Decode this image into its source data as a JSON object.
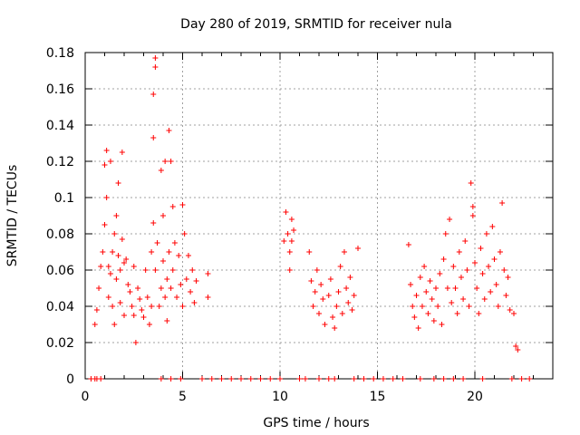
{
  "chart_data": {
    "type": "scatter",
    "title": "Day 280 of 2019, SRMTID for receiver nula",
    "xlabel": "GPS time / hours",
    "ylabel": "SRMTID / TECUs",
    "xlim": [
      0,
      24
    ],
    "ylim": [
      0,
      0.18
    ],
    "x_ticks": [
      0,
      5,
      10,
      15,
      20
    ],
    "x_tick_labels": [
      "0",
      "5",
      "10",
      "15",
      "20"
    ],
    "y_ticks": [
      0,
      0.02,
      0.04,
      0.06,
      0.08,
      0.1,
      0.12,
      0.14,
      0.16,
      0.18
    ],
    "y_tick_labels": [
      "0",
      "0.02",
      "0.04",
      "0.06",
      "0.08",
      "0.1",
      "0.12",
      "0.14",
      "0.16",
      "0.18"
    ],
    "grid": true,
    "marker": "+",
    "marker_color": "#ff0000",
    "series": [
      {
        "name": "SRMTID",
        "points": [
          [
            0.3,
            0.0
          ],
          [
            0.5,
            0.0
          ],
          [
            0.6,
            0.0
          ],
          [
            0.8,
            0.0
          ],
          [
            3.9,
            0.0
          ],
          [
            4.4,
            0.0
          ],
          [
            4.9,
            0.0
          ],
          [
            6.0,
            0.0
          ],
          [
            6.5,
            0.0
          ],
          [
            7.0,
            0.0
          ],
          [
            7.5,
            0.0
          ],
          [
            8.0,
            0.0
          ],
          [
            8.5,
            0.0
          ],
          [
            9.0,
            0.0
          ],
          [
            9.5,
            0.0
          ],
          [
            10.0,
            0.0
          ],
          [
            11.0,
            0.0
          ],
          [
            11.3,
            0.0
          ],
          [
            12.0,
            0.0
          ],
          [
            12.5,
            0.0
          ],
          [
            12.8,
            0.0
          ],
          [
            13.8,
            0.0
          ],
          [
            14.3,
            0.0
          ],
          [
            14.8,
            0.0
          ],
          [
            15.3,
            0.0
          ],
          [
            15.8,
            0.0
          ],
          [
            16.3,
            0.0
          ],
          [
            17.2,
            0.0
          ],
          [
            17.9,
            0.0
          ],
          [
            18.4,
            0.0
          ],
          [
            18.9,
            0.0
          ],
          [
            19.4,
            0.0
          ],
          [
            20.4,
            0.0
          ],
          [
            21.9,
            0.0
          ],
          [
            22.4,
            0.0
          ],
          [
            22.8,
            0.0
          ],
          [
            0.5,
            0.03
          ],
          [
            0.6,
            0.038
          ],
          [
            0.7,
            0.05
          ],
          [
            0.8,
            0.062
          ],
          [
            0.9,
            0.07
          ],
          [
            1.0,
            0.085
          ],
          [
            1.0,
            0.118
          ],
          [
            1.1,
            0.1
          ],
          [
            1.1,
            0.126
          ],
          [
            1.2,
            0.062
          ],
          [
            1.2,
            0.045
          ],
          [
            1.3,
            0.12
          ],
          [
            1.3,
            0.058
          ],
          [
            1.4,
            0.07
          ],
          [
            1.4,
            0.04
          ],
          [
            1.5,
            0.08
          ],
          [
            1.5,
            0.03
          ],
          [
            1.6,
            0.09
          ],
          [
            1.6,
            0.055
          ],
          [
            1.7,
            0.068
          ],
          [
            1.7,
            0.108
          ],
          [
            1.8,
            0.06
          ],
          [
            1.8,
            0.042
          ],
          [
            1.9,
            0.125
          ],
          [
            1.9,
            0.077
          ],
          [
            2.0,
            0.064
          ],
          [
            2.0,
            0.035
          ],
          [
            2.1,
            0.066
          ],
          [
            2.2,
            0.052
          ],
          [
            2.3,
            0.048
          ],
          [
            2.4,
            0.04
          ],
          [
            2.5,
            0.062
          ],
          [
            2.5,
            0.035
          ],
          [
            2.6,
            0.02
          ],
          [
            2.7,
            0.05
          ],
          [
            2.8,
            0.044
          ],
          [
            2.9,
            0.038
          ],
          [
            3.0,
            0.034
          ],
          [
            3.1,
            0.06
          ],
          [
            3.2,
            0.045
          ],
          [
            3.3,
            0.03
          ],
          [
            3.4,
            0.07
          ],
          [
            3.4,
            0.04
          ],
          [
            3.5,
            0.086
          ],
          [
            3.5,
            0.133
          ],
          [
            3.5,
            0.157
          ],
          [
            3.6,
            0.177
          ],
          [
            3.6,
            0.172
          ],
          [
            3.6,
            0.06
          ],
          [
            3.7,
            0.075
          ],
          [
            3.8,
            0.04
          ],
          [
            3.9,
            0.115
          ],
          [
            3.9,
            0.05
          ],
          [
            4.0,
            0.065
          ],
          [
            4.0,
            0.09
          ],
          [
            4.1,
            0.045
          ],
          [
            4.1,
            0.12
          ],
          [
            4.2,
            0.055
          ],
          [
            4.2,
            0.032
          ],
          [
            4.3,
            0.07
          ],
          [
            4.3,
            0.137
          ],
          [
            4.4,
            0.12
          ],
          [
            4.4,
            0.05
          ],
          [
            4.5,
            0.095
          ],
          [
            4.5,
            0.06
          ],
          [
            4.6,
            0.075
          ],
          [
            4.7,
            0.045
          ],
          [
            4.8,
            0.068
          ],
          [
            4.9,
            0.052
          ],
          [
            5.0,
            0.096
          ],
          [
            5.0,
            0.04
          ],
          [
            5.1,
            0.08
          ],
          [
            5.2,
            0.055
          ],
          [
            5.3,
            0.068
          ],
          [
            5.4,
            0.048
          ],
          [
            5.5,
            0.06
          ],
          [
            5.6,
            0.042
          ],
          [
            5.7,
            0.054
          ],
          [
            6.3,
            0.058
          ],
          [
            6.3,
            0.045
          ],
          [
            10.2,
            0.076
          ],
          [
            10.3,
            0.092
          ],
          [
            10.4,
            0.08
          ],
          [
            10.5,
            0.07
          ],
          [
            10.5,
            0.06
          ],
          [
            10.6,
            0.088
          ],
          [
            10.6,
            0.076
          ],
          [
            10.7,
            0.082
          ],
          [
            11.5,
            0.07
          ],
          [
            11.6,
            0.054
          ],
          [
            11.7,
            0.04
          ],
          [
            11.8,
            0.048
          ],
          [
            11.9,
            0.06
          ],
          [
            12.0,
            0.036
          ],
          [
            12.1,
            0.052
          ],
          [
            12.2,
            0.044
          ],
          [
            12.3,
            0.03
          ],
          [
            12.5,
            0.046
          ],
          [
            12.6,
            0.055
          ],
          [
            12.7,
            0.034
          ],
          [
            12.8,
            0.028
          ],
          [
            12.9,
            0.04
          ],
          [
            13.0,
            0.048
          ],
          [
            13.1,
            0.062
          ],
          [
            13.2,
            0.036
          ],
          [
            13.3,
            0.07
          ],
          [
            13.4,
            0.05
          ],
          [
            13.5,
            0.042
          ],
          [
            13.6,
            0.056
          ],
          [
            13.7,
            0.038
          ],
          [
            13.8,
            0.046
          ],
          [
            14.0,
            0.072
          ],
          [
            16.6,
            0.074
          ],
          [
            16.7,
            0.052
          ],
          [
            16.8,
            0.04
          ],
          [
            16.9,
            0.034
          ],
          [
            17.0,
            0.046
          ],
          [
            17.1,
            0.028
          ],
          [
            17.2,
            0.056
          ],
          [
            17.3,
            0.04
          ],
          [
            17.4,
            0.062
          ],
          [
            17.5,
            0.048
          ],
          [
            17.6,
            0.036
          ],
          [
            17.7,
            0.054
          ],
          [
            17.8,
            0.044
          ],
          [
            17.9,
            0.032
          ],
          [
            18.0,
            0.05
          ],
          [
            18.1,
            0.04
          ],
          [
            18.2,
            0.058
          ],
          [
            18.3,
            0.03
          ],
          [
            18.4,
            0.066
          ],
          [
            18.5,
            0.08
          ],
          [
            18.6,
            0.05
          ],
          [
            18.7,
            0.088
          ],
          [
            18.8,
            0.042
          ],
          [
            18.9,
            0.062
          ],
          [
            19.0,
            0.05
          ],
          [
            19.1,
            0.036
          ],
          [
            19.2,
            0.07
          ],
          [
            19.3,
            0.056
          ],
          [
            19.4,
            0.044
          ],
          [
            19.5,
            0.076
          ],
          [
            19.6,
            0.06
          ],
          [
            19.7,
            0.04
          ],
          [
            19.8,
            0.108
          ],
          [
            19.9,
            0.095
          ],
          [
            19.9,
            0.09
          ],
          [
            20.0,
            0.064
          ],
          [
            20.1,
            0.05
          ],
          [
            20.2,
            0.036
          ],
          [
            20.3,
            0.072
          ],
          [
            20.4,
            0.058
          ],
          [
            20.5,
            0.044
          ],
          [
            20.6,
            0.08
          ],
          [
            20.7,
            0.062
          ],
          [
            20.8,
            0.048
          ],
          [
            20.9,
            0.084
          ],
          [
            21.0,
            0.066
          ],
          [
            21.1,
            0.052
          ],
          [
            21.2,
            0.04
          ],
          [
            21.3,
            0.07
          ],
          [
            21.4,
            0.097
          ],
          [
            21.5,
            0.06
          ],
          [
            21.6,
            0.046
          ],
          [
            21.7,
            0.056
          ],
          [
            21.8,
            0.038
          ],
          [
            22.0,
            0.036
          ],
          [
            22.1,
            0.018
          ],
          [
            22.2,
            0.016
          ]
        ]
      }
    ]
  }
}
